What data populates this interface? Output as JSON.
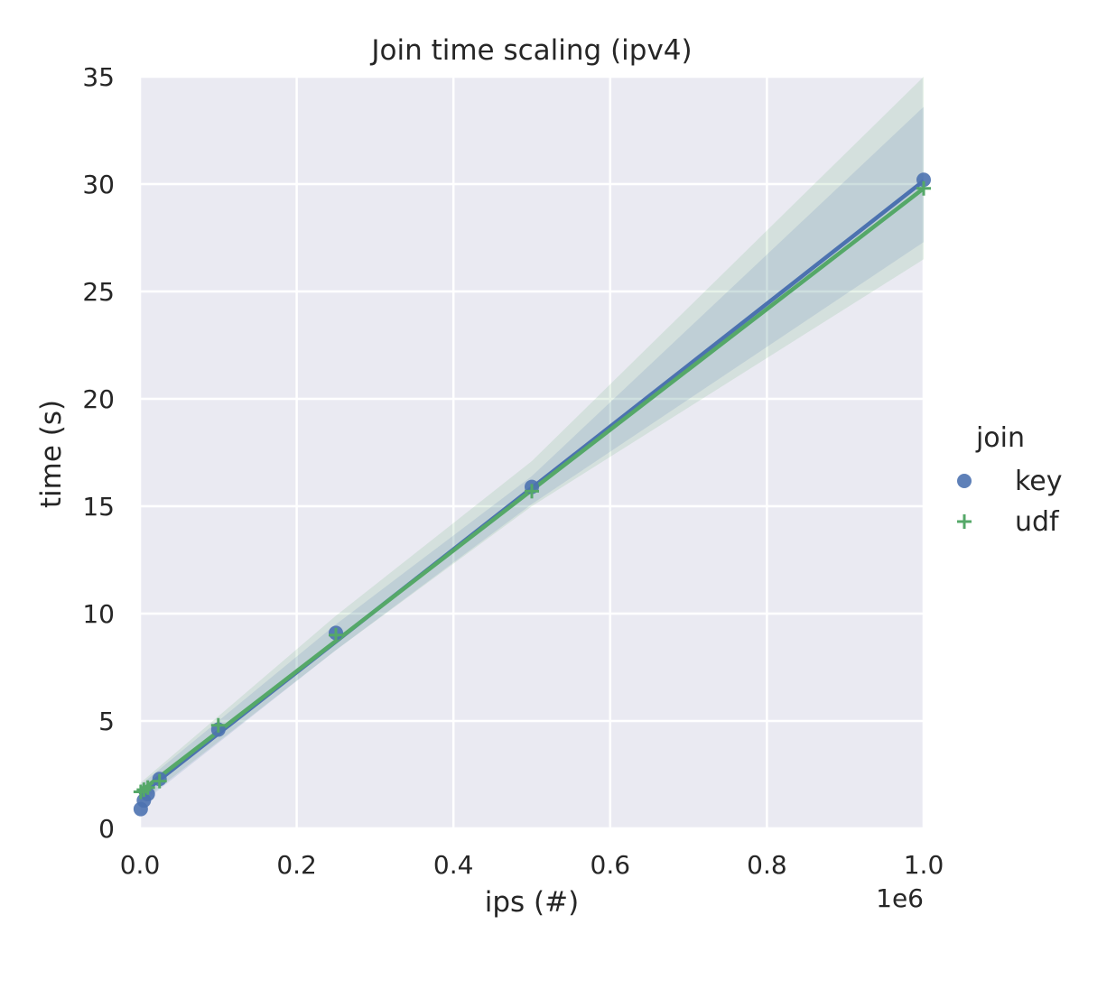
{
  "chart_data": {
    "type": "scatter",
    "title": "Join time scaling (ipv4)",
    "xlabel": "ips (#)",
    "ylabel": "time (s)",
    "x_offset_label": "1e6",
    "xlim": [
      0,
      1000000
    ],
    "ylim": [
      0,
      35
    ],
    "xticks": [
      0,
      200000,
      400000,
      600000,
      800000,
      1000000
    ],
    "xtick_labels": [
      "0.0",
      "0.2",
      "0.4",
      "0.6",
      "0.8",
      "1.0"
    ],
    "yticks": [
      0,
      5,
      10,
      15,
      20,
      25,
      30,
      35
    ],
    "ytick_labels": [
      "0",
      "5",
      "10",
      "15",
      "20",
      "25",
      "30",
      "35"
    ],
    "grid": true,
    "legend": {
      "title": "join",
      "placement": "right"
    },
    "series": [
      {
        "name": "key",
        "marker": "circle",
        "color": "#4c72b0",
        "points": [
          {
            "x": 1000,
            "y": 0.9
          },
          {
            "x": 5000,
            "y": 1.3
          },
          {
            "x": 10000,
            "y": 1.6
          },
          {
            "x": 25000,
            "y": 2.3
          },
          {
            "x": 100000,
            "y": 4.6
          },
          {
            "x": 250000,
            "y": 9.1
          },
          {
            "x": 500000,
            "y": 15.9
          },
          {
            "x": 1000000,
            "y": 30.2
          }
        ],
        "fit": {
          "intercept": 1.55,
          "slope_per_million": 28.6
        },
        "ci": [
          {
            "x": 0,
            "lo": 1.1,
            "hi": 2.0
          },
          {
            "x": 250000,
            "lo": 8.3,
            "hi": 9.5
          },
          {
            "x": 500000,
            "lo": 15.1,
            "hi": 16.4
          },
          {
            "x": 1000000,
            "lo": 27.3,
            "hi": 33.6
          }
        ]
      },
      {
        "name": "udf",
        "marker": "plus",
        "color": "#55a868",
        "points": [
          {
            "x": 1000,
            "y": 1.7
          },
          {
            "x": 5000,
            "y": 1.8
          },
          {
            "x": 10000,
            "y": 1.9
          },
          {
            "x": 25000,
            "y": 2.2
          },
          {
            "x": 100000,
            "y": 4.8
          },
          {
            "x": 250000,
            "y": 9.0
          },
          {
            "x": 500000,
            "y": 15.7
          },
          {
            "x": 1000000,
            "y": 29.8
          }
        ],
        "fit": {
          "intercept": 1.7,
          "slope_per_million": 28.1
        },
        "ci": [
          {
            "x": 0,
            "lo": 1.2,
            "hi": 2.1
          },
          {
            "x": 250000,
            "lo": 8.3,
            "hi": 9.9
          },
          {
            "x": 500000,
            "lo": 15.0,
            "hi": 17.1
          },
          {
            "x": 1000000,
            "lo": 26.5,
            "hi": 35.0
          }
        ]
      }
    ]
  }
}
